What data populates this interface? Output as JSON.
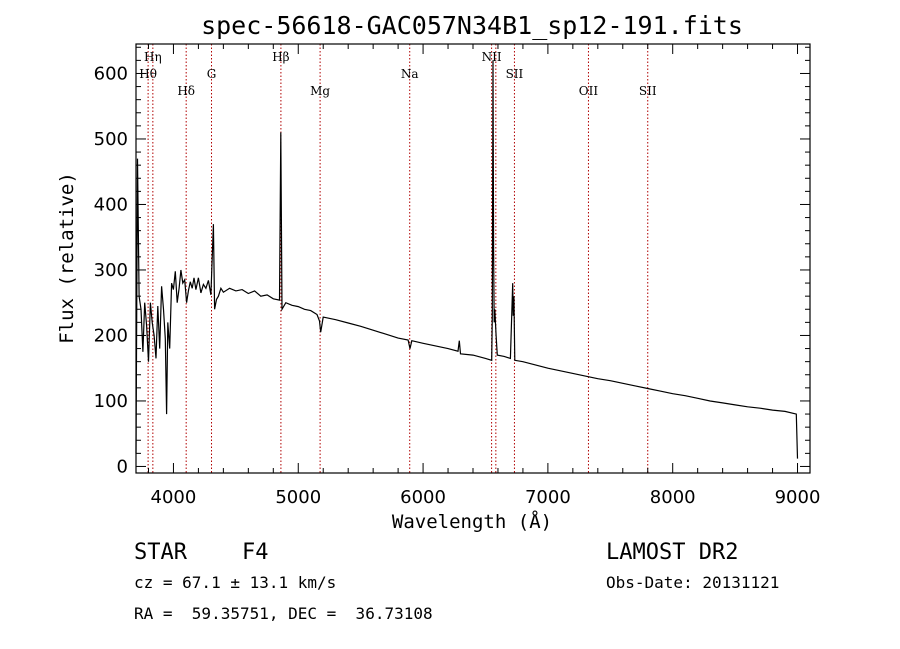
{
  "chart_data": {
    "type": "line",
    "title": "spec-56618-GAC057N34B1_sp12-191.fits",
    "xlabel": "Wavelength (Å)",
    "ylabel": "Flux (relative)",
    "xlim": [
      3700,
      9100
    ],
    "ylim": [
      -10,
      645
    ],
    "x_ticks": [
      4000,
      5000,
      6000,
      7000,
      8000,
      9000
    ],
    "y_ticks": [
      0,
      100,
      200,
      300,
      400,
      500,
      600
    ],
    "grid": false,
    "colors": {
      "spectrum": "#000000",
      "line_markers": "#b00000",
      "axes": "#000000"
    },
    "series": [
      {
        "points": [
          [
            3700,
            20
          ],
          [
            3712,
            470
          ],
          [
            3725,
            260
          ],
          [
            3740,
            240
          ],
          [
            3755,
            175
          ],
          [
            3770,
            250
          ],
          [
            3785,
            215
          ],
          [
            3800,
            160
          ],
          [
            3815,
            250
          ],
          [
            3830,
            220
          ],
          [
            3845,
            200
          ],
          [
            3860,
            165
          ],
          [
            3875,
            245
          ],
          [
            3890,
            180
          ],
          [
            3905,
            275
          ],
          [
            3920,
            240
          ],
          [
            3935,
            195
          ],
          [
            3945,
            80
          ],
          [
            3955,
            220
          ],
          [
            3970,
            180
          ],
          [
            3985,
            280
          ],
          [
            4000,
            270
          ],
          [
            4015,
            298
          ],
          [
            4030,
            250
          ],
          [
            4045,
            272
          ],
          [
            4060,
            300
          ],
          [
            4075,
            280
          ],
          [
            4090,
            285
          ],
          [
            4105,
            250
          ],
          [
            4120,
            268
          ],
          [
            4135,
            282
          ],
          [
            4150,
            272
          ],
          [
            4165,
            288
          ],
          [
            4180,
            270
          ],
          [
            4200,
            288
          ],
          [
            4220,
            265
          ],
          [
            4240,
            278
          ],
          [
            4260,
            272
          ],
          [
            4280,
            284
          ],
          [
            4300,
            262
          ],
          [
            4320,
            370
          ],
          [
            4330,
            240
          ],
          [
            4345,
            255
          ],
          [
            4360,
            260
          ],
          [
            4380,
            272
          ],
          [
            4400,
            266
          ],
          [
            4450,
            272
          ],
          [
            4500,
            268
          ],
          [
            4550,
            270
          ],
          [
            4600,
            264
          ],
          [
            4650,
            268
          ],
          [
            4700,
            260
          ],
          [
            4750,
            262
          ],
          [
            4800,
            256
          ],
          [
            4850,
            254
          ],
          [
            4860,
            510
          ],
          [
            4870,
            240
          ],
          [
            4900,
            250
          ],
          [
            4950,
            246
          ],
          [
            5000,
            244
          ],
          [
            5050,
            240
          ],
          [
            5100,
            238
          ],
          [
            5150,
            232
          ],
          [
            5170,
            222
          ],
          [
            5180,
            205
          ],
          [
            5200,
            228
          ],
          [
            5300,
            224
          ],
          [
            5400,
            219
          ],
          [
            5500,
            214
          ],
          [
            5600,
            208
          ],
          [
            5700,
            202
          ],
          [
            5800,
            196
          ],
          [
            5880,
            193
          ],
          [
            5895,
            180
          ],
          [
            5910,
            192
          ],
          [
            6000,
            188
          ],
          [
            6100,
            184
          ],
          [
            6200,
            180
          ],
          [
            6280,
            176
          ],
          [
            6290,
            192
          ],
          [
            6300,
            172
          ],
          [
            6400,
            170
          ],
          [
            6500,
            165
          ],
          [
            6550,
            162
          ],
          [
            6555,
            230
          ],
          [
            6560,
            620
          ],
          [
            6565,
            330
          ],
          [
            6570,
            220
          ],
          [
            6575,
            240
          ],
          [
            6585,
            200
          ],
          [
            6595,
            170
          ],
          [
            6650,
            168
          ],
          [
            6700,
            165
          ],
          [
            6712,
            240
          ],
          [
            6718,
            280
          ],
          [
            6722,
            230
          ],
          [
            6728,
            260
          ],
          [
            6735,
            162
          ],
          [
            6800,
            160
          ],
          [
            6900,
            155
          ],
          [
            7000,
            150
          ],
          [
            7100,
            146
          ],
          [
            7200,
            142
          ],
          [
            7300,
            138
          ],
          [
            7400,
            134
          ],
          [
            7500,
            131
          ],
          [
            7600,
            127
          ],
          [
            7700,
            123
          ],
          [
            7800,
            119
          ],
          [
            7900,
            115
          ],
          [
            8000,
            111
          ],
          [
            8100,
            108
          ],
          [
            8200,
            104
          ],
          [
            8300,
            100
          ],
          [
            8400,
            97
          ],
          [
            8500,
            94
          ],
          [
            8600,
            91
          ],
          [
            8700,
            89
          ],
          [
            8800,
            86
          ],
          [
            8900,
            84
          ],
          [
            8990,
            80
          ],
          [
            9000,
            12
          ]
        ]
      }
    ],
    "line_markers": [
      {
        "label": "Hη",
        "wavelength": 3835,
        "row": 0
      },
      {
        "label": "Hθ",
        "wavelength": 3797,
        "row": 1
      },
      {
        "label": "Hδ",
        "wavelength": 4102,
        "row": 2
      },
      {
        "label": "G",
        "wavelength": 4305,
        "row": 1
      },
      {
        "label": "Hβ",
        "wavelength": 4861,
        "row": 0
      },
      {
        "label": "Mg",
        "wavelength": 5175,
        "row": 2
      },
      {
        "label": "Na",
        "wavelength": 5893,
        "row": 1
      },
      {
        "label": "NII",
        "wavelength": 6549,
        "row": 0
      },
      {
        "label": "",
        "wavelength": 6583,
        "row": 0
      },
      {
        "label": "SII",
        "wavelength": 6732,
        "row": 1
      },
      {
        "label": "OII",
        "wavelength": 7325,
        "row": 2
      },
      {
        "label": "SII",
        "wavelength": 7800,
        "row": 2
      }
    ]
  },
  "info": {
    "object_class": "STAR",
    "subclass": "F4",
    "survey": "LAMOST DR2",
    "redshift": "cz = 67.1 ± 13.1 km/s",
    "obs_date": "Obs-Date: 20131121",
    "coordinates": "RA =  59.35751, DEC =  36.73108"
  }
}
